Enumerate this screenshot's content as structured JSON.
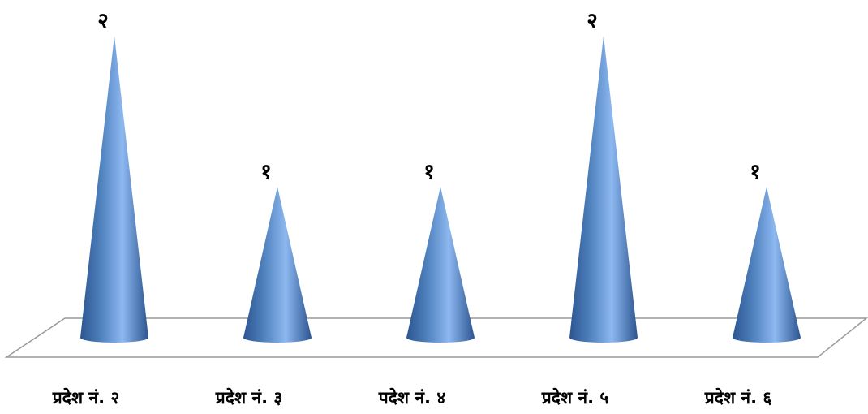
{
  "chart_data": {
    "type": "bar",
    "bar_shape": "cone",
    "categories": [
      "प्रदेश नं. २",
      "प्रदेश नं. ३",
      "पदेश नं. ४",
      "प्रदेश नं. ५",
      "प्रदेश नं. ६"
    ],
    "values": [
      2,
      1,
      1,
      2,
      1
    ],
    "data_labels": [
      "२",
      "१",
      "१",
      "२",
      "१"
    ],
    "title": "",
    "xlabel": "",
    "ylabel": "",
    "ylim": [
      0,
      2
    ],
    "grid": false,
    "legend": "none",
    "colors": {
      "cone_light": "#8db8f0",
      "cone_mid": "#4f81bd",
      "cone_dark": "#2c5590",
      "floor_stroke": "#9a9a9a",
      "floor_fill": "#ffffff"
    }
  }
}
